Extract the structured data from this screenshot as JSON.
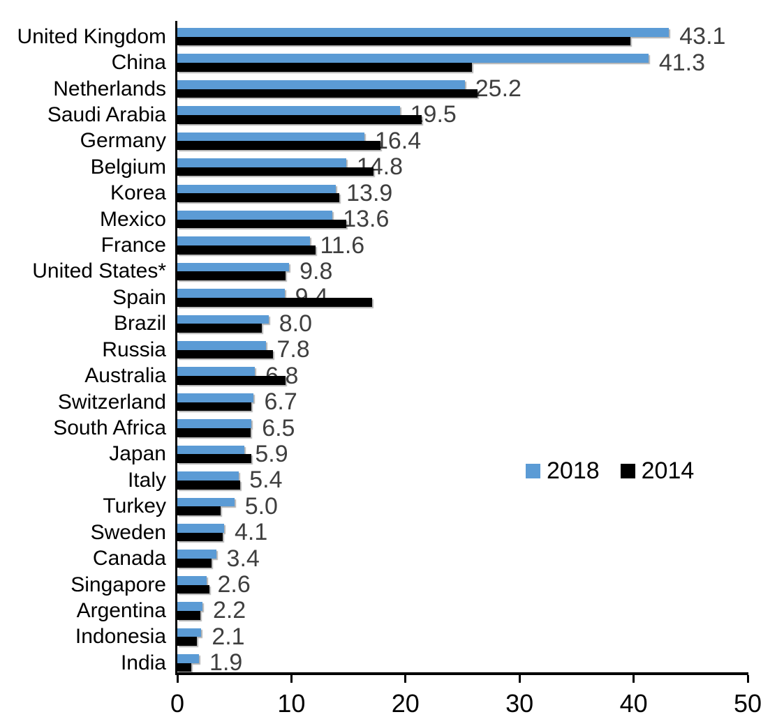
{
  "chart_data": {
    "type": "bar",
    "orientation": "horizontal",
    "title": "",
    "xlabel": "",
    "ylabel": "",
    "grid": false,
    "xlim": [
      0,
      50
    ],
    "x_axis": {
      "ticks": [
        0,
        10,
        20,
        30,
        40,
        50
      ]
    },
    "categories": [
      "United Kingdom",
      "China",
      "Netherlands",
      "Saudi Arabia",
      "Germany",
      "Belgium",
      "Korea",
      "Mexico",
      "France",
      "United States*",
      "Spain",
      "Brazil",
      "Russia",
      "Australia",
      "Switzerland",
      "South Africa",
      "Japan",
      "Italy",
      "Turkey",
      "Sweden",
      "Canada",
      "Singapore",
      "Argentina",
      "Indonesia",
      "India"
    ],
    "series": [
      {
        "name": "2018",
        "color": "#5B9BD5",
        "values": [
          43.1,
          41.3,
          25.2,
          19.5,
          16.4,
          14.8,
          13.9,
          13.6,
          11.6,
          9.8,
          9.4,
          8.0,
          7.8,
          6.8,
          6.7,
          6.5,
          5.9,
          5.4,
          5.0,
          4.1,
          3.4,
          2.6,
          2.2,
          2.1,
          1.9
        ]
      },
      {
        "name": "2014",
        "color": "#000000",
        "values": [
          39.7,
          25.8,
          26.3,
          21.4,
          17.8,
          17.2,
          14.2,
          14.8,
          12.1,
          9.5,
          17.1,
          7.4,
          8.4,
          9.5,
          6.5,
          6.4,
          6.5,
          5.5,
          3.8,
          4.0,
          3.0,
          2.8,
          2.0,
          1.7,
          1.2
        ]
      }
    ],
    "data_labels": {
      "on_series": "2018",
      "decimals": 1,
      "color": "#3f3f3f"
    },
    "legend_position": "middle-right"
  }
}
